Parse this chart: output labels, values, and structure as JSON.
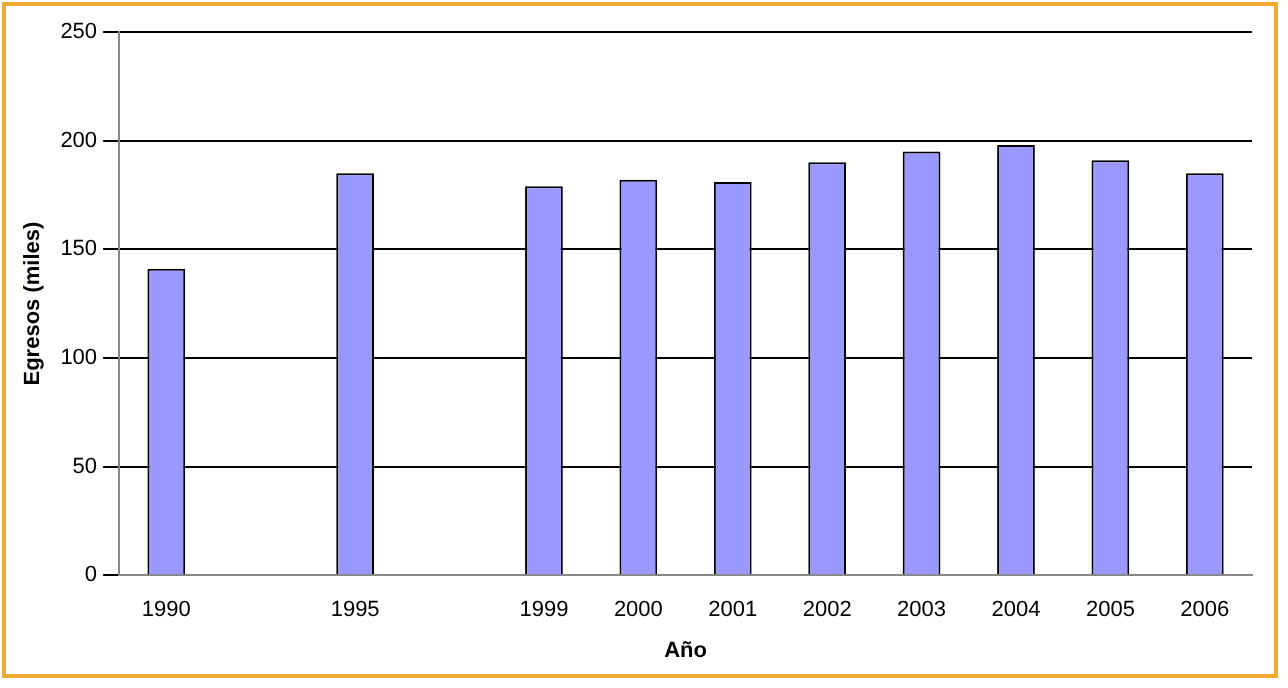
{
  "chart_data": {
    "type": "bar",
    "xlabel": "Año",
    "ylabel": "Egresos (miles)",
    "categories": [
      "1990",
      null,
      "1995",
      null,
      "1999",
      "2000",
      "2001",
      "2002",
      "2003",
      "2004",
      "2005",
      "2006"
    ],
    "values": [
      141,
      null,
      185,
      null,
      179,
      182,
      181,
      190,
      195,
      198,
      191,
      185
    ],
    "color": "#9999ff",
    "ylim": [
      0,
      250
    ],
    "yticks": [
      0,
      50,
      100,
      150,
      200,
      250
    ],
    "grid": "y",
    "legend": false
  }
}
